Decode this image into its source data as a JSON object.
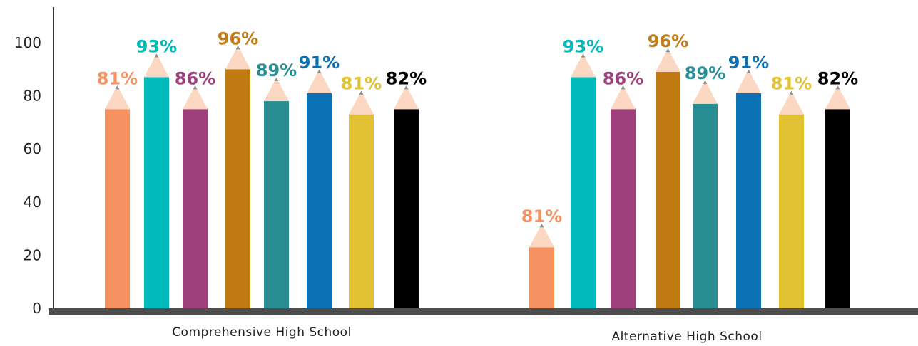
{
  "chart_data": {
    "type": "bar",
    "categories": [
      "Comprehensive High School",
      "Alternative High School"
    ],
    "series": [
      {
        "color": "#f69262",
        "values": [
          75,
          23
        ],
        "labels": [
          "81%",
          "81%"
        ]
      },
      {
        "color": "#00babb",
        "values": [
          87,
          87
        ],
        "labels": [
          "93%",
          "93%"
        ]
      },
      {
        "color": "#9d3f7a",
        "values": [
          75,
          75
        ],
        "labels": [
          "86%",
          "86%"
        ]
      },
      {
        "color": "#c07b14",
        "values": [
          90,
          89
        ],
        "labels": [
          "96%",
          "96%"
        ]
      },
      {
        "color": "#2a8d93",
        "values": [
          78,
          77
        ],
        "labels": [
          "89%",
          "89%"
        ]
      },
      {
        "color": "#0c70b5",
        "values": [
          81,
          81
        ],
        "labels": [
          "91%",
          "91%"
        ]
      },
      {
        "color": "#e2c132",
        "values": [
          73,
          73
        ],
        "labels": [
          "81%",
          "81%"
        ]
      },
      {
        "color": "#000000",
        "values": [
          75,
          75
        ],
        "labels": [
          "82%",
          "82%"
        ]
      }
    ],
    "ylim": [
      0,
      100
    ],
    "yticks": [
      0,
      20,
      40,
      60,
      80,
      100
    ],
    "bar_style": "pencil",
    "pencil_tip_color": "#fcd7c1",
    "baseline_color": "#4d4d4d",
    "grid": false,
    "legend": "none"
  }
}
